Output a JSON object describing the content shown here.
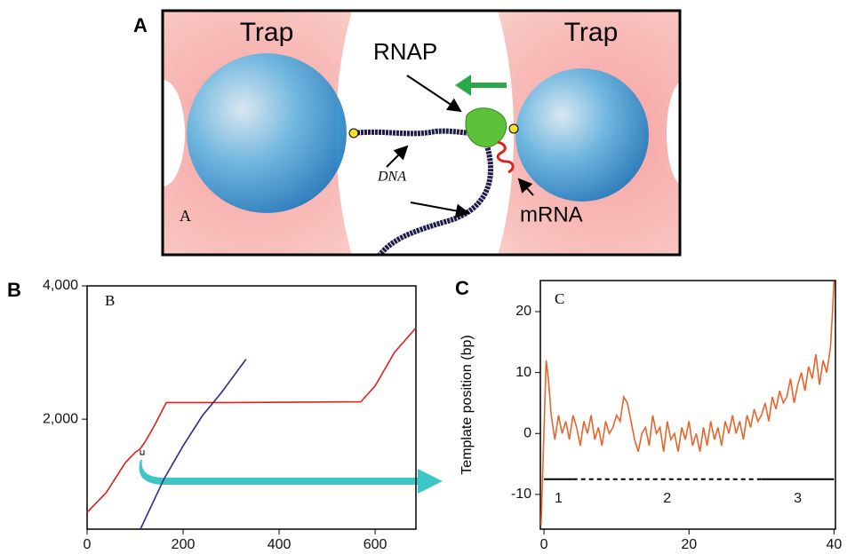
{
  "panel_a": {
    "panel_label": "A",
    "inner_label": "A",
    "trap_left": "Trap",
    "trap_right": "Trap",
    "rnap": "RNAP",
    "dna": "DNA",
    "mrna": "mRNA"
  },
  "chart_data": [
    {
      "type": "line",
      "panel_label": "B",
      "title": "B",
      "xlim": [
        0,
        685
      ],
      "xticks": [
        0,
        200,
        400,
        600
      ],
      "ylim": [
        350,
        4000
      ],
      "yticks": [
        {
          "value": 2000,
          "label": "2,000"
        },
        {
          "value": 4000,
          "label": "4,000"
        }
      ],
      "series": [
        {
          "color": "#e0201c",
          "x": [
            0,
            40,
            80,
            100,
            110,
            120,
            140,
            165,
            300,
            570,
            600,
            640,
            685
          ],
          "values": [
            600,
            900,
            1350,
            1500,
            1550,
            1650,
            1900,
            2250,
            2250,
            2260,
            2500,
            3000,
            3370
          ]
        },
        {
          "color": "#2a2a8c",
          "x": [
            111,
            160,
            200,
            240,
            280,
            331
          ],
          "values": [
            350,
            1100,
            1600,
            2050,
            2400,
            2900
          ]
        }
      ]
    },
    {
      "type": "line",
      "panel_label": "C",
      "title": "C",
      "y_label": "Template position (bp)",
      "xlim": [
        -0.5,
        40.2
      ],
      "xticks": [
        0,
        20,
        40
      ],
      "ylim": [
        -15.7,
        25.1
      ],
      "yticks": [
        -10,
        0,
        10,
        20
      ],
      "series": [
        {
          "color": "#e8642c",
          "x": [
            -0.4,
            0.3,
            0.6,
            1,
            1.5,
            2,
            2.5,
            3,
            3.5,
            4,
            4.5,
            5,
            5.5,
            6,
            6.5,
            7,
            7.5,
            8,
            8.5,
            9,
            9.5,
            10,
            10.5,
            11,
            11.5,
            12,
            12.5,
            13,
            13.5,
            14,
            14.5,
            15,
            15.5,
            16,
            16.5,
            17,
            17.5,
            18,
            18.5,
            19,
            19.5,
            20,
            20.5,
            21,
            21.5,
            22,
            22.5,
            23,
            23.5,
            24,
            24.5,
            25,
            25.5,
            26,
            26.5,
            27,
            27.5,
            28,
            28.5,
            29,
            29.5,
            30,
            30.5,
            31,
            31.5,
            32,
            32.5,
            33,
            33.5,
            34,
            34.5,
            35,
            35.5,
            36,
            36.5,
            37,
            37.5,
            38,
            38.5,
            39,
            39.5,
            39.8,
            40
          ],
          "values": [
            -15,
            12,
            9,
            3,
            -1,
            3,
            0,
            2,
            -1,
            3,
            1,
            -2,
            2,
            0,
            3,
            -1,
            1,
            -2,
            2,
            0,
            1,
            3,
            2,
            6,
            5,
            2,
            -1,
            -3,
            0,
            1,
            -2,
            3,
            0,
            1,
            -3,
            2,
            -1,
            0,
            -3,
            1,
            -1,
            2,
            -2,
            0,
            -3,
            1,
            -2,
            2,
            -1,
            1,
            -2,
            2,
            0,
            3,
            0,
            2,
            -1,
            3,
            1,
            4,
            2,
            3,
            5,
            2,
            6,
            4,
            7,
            5,
            6,
            9,
            5,
            8,
            10,
            7,
            11,
            9,
            13,
            8,
            12,
            10,
            14,
            20,
            25
          ]
        }
      ],
      "phases": [
        {
          "label": "1",
          "start": 0,
          "end": 4,
          "level": -7.5,
          "style": "solid"
        },
        {
          "label": "2",
          "start": 4,
          "end": 30,
          "level": -7.5,
          "style": "dashed"
        },
        {
          "label": "3",
          "start": 30,
          "end": 40,
          "level": -7.5,
          "style": "solid"
        }
      ]
    }
  ]
}
